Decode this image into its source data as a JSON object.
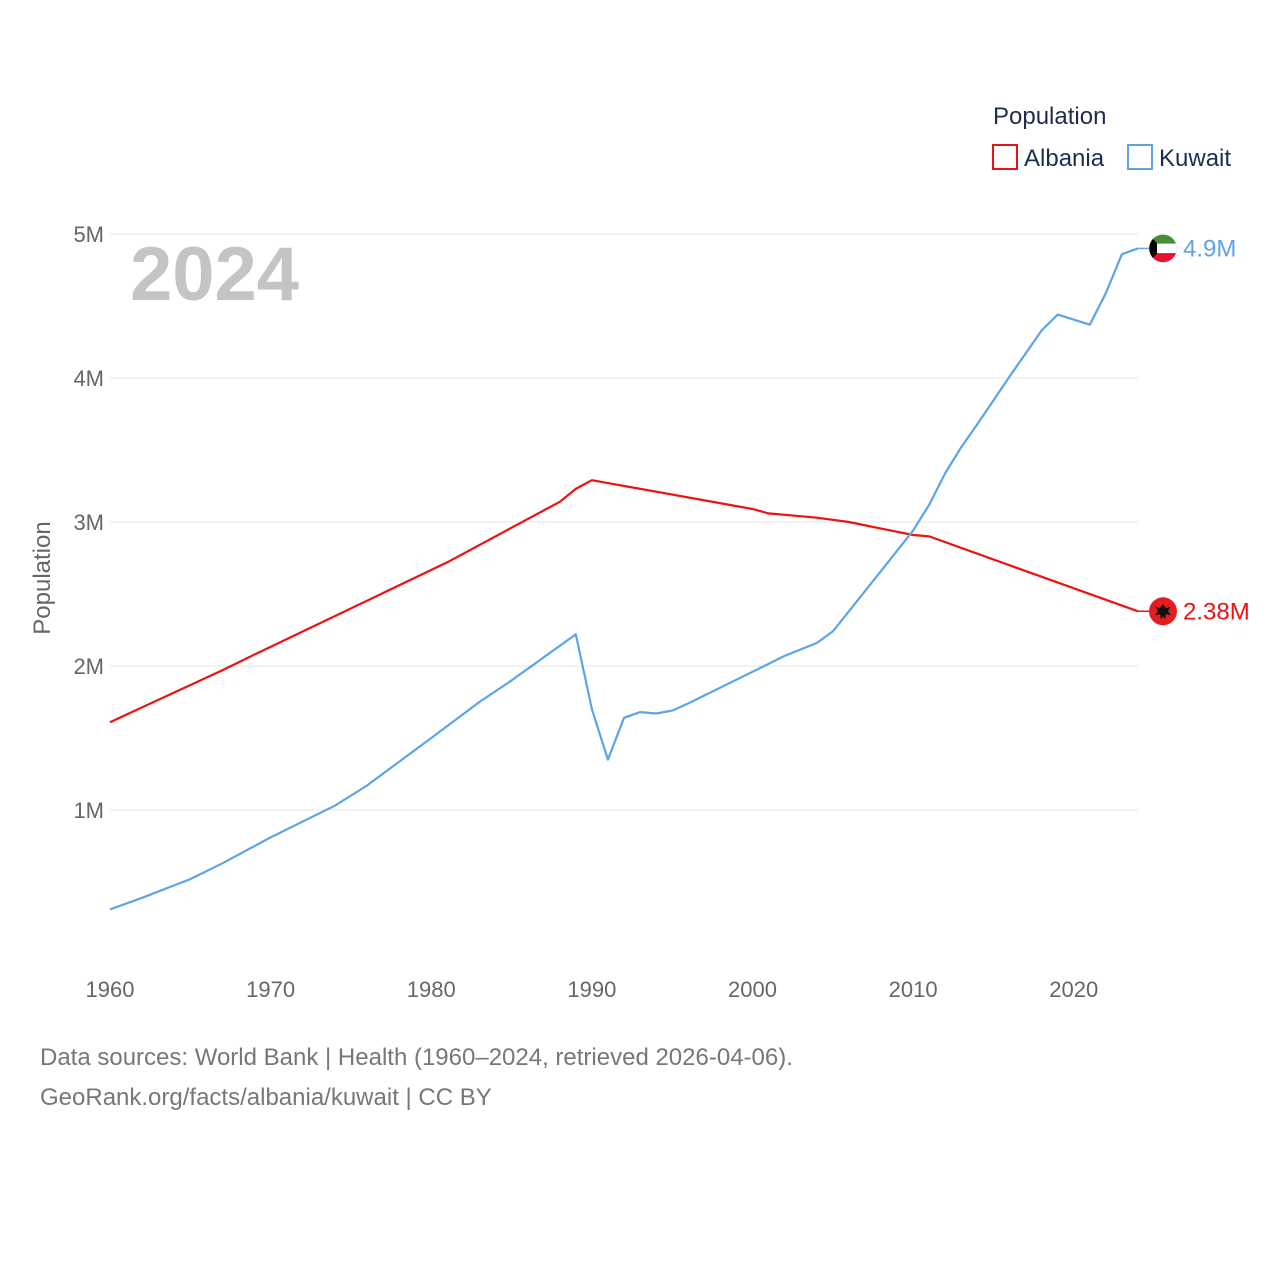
{
  "chart_data": {
    "type": "line",
    "year_label": "2024",
    "ylabel": "Population",
    "ylim": [
      0,
      5000000
    ],
    "xlim": [
      1960,
      2024
    ],
    "x_ticks": [
      1960,
      1970,
      1980,
      1990,
      2000,
      2010,
      2020
    ],
    "x_tick_labels": [
      "1960",
      "1970",
      "1980",
      "1990",
      "2000",
      "2010",
      "2020"
    ],
    "y_ticks": [
      1000000,
      2000000,
      3000000,
      4000000,
      5000000
    ],
    "y_tick_labels": [
      "1M",
      "2M",
      "3M",
      "4M",
      "5M"
    ],
    "legend_title": "Population",
    "series": [
      {
        "name": "Albania",
        "color": "#ee1111",
        "end_label": "2.38M",
        "icon": "albania-flag-icon",
        "points": [
          [
            1960,
            1610000
          ],
          [
            1967,
            1970000
          ],
          [
            1969,
            2080000
          ],
          [
            1981,
            2720000
          ],
          [
            1988,
            3140000
          ],
          [
            1989,
            3230000
          ],
          [
            1990,
            3290000
          ],
          [
            2000,
            3090000
          ],
          [
            2001,
            3060000
          ],
          [
            2004,
            3030000
          ],
          [
            2006,
            3000000
          ],
          [
            2010,
            2910000
          ],
          [
            2011,
            2900000
          ],
          [
            2024,
            2380000
          ]
        ]
      },
      {
        "name": "Kuwait",
        "color": "#5ba4e6",
        "end_label": "4.9M",
        "icon": "kuwait-flag-icon",
        "points": [
          [
            1960,
            310000
          ],
          [
            1962,
            390000
          ],
          [
            1965,
            520000
          ],
          [
            1967,
            630000
          ],
          [
            1970,
            810000
          ],
          [
            1974,
            1030000
          ],
          [
            1976,
            1170000
          ],
          [
            1980,
            1500000
          ],
          [
            1983,
            1750000
          ],
          [
            1985,
            1900000
          ],
          [
            1989,
            2220000
          ],
          [
            1990,
            1700000
          ],
          [
            1991,
            1350000
          ],
          [
            1992,
            1640000
          ],
          [
            1993,
            1680000
          ],
          [
            1994,
            1670000
          ],
          [
            1995,
            1690000
          ],
          [
            1996,
            1740000
          ],
          [
            2000,
            1960000
          ],
          [
            2002,
            2070000
          ],
          [
            2004,
            2160000
          ],
          [
            2005,
            2240000
          ],
          [
            2006,
            2380000
          ],
          [
            2008,
            2660000
          ],
          [
            2010,
            2940000
          ],
          [
            2011,
            3120000
          ],
          [
            2012,
            3340000
          ],
          [
            2013,
            3520000
          ],
          [
            2014,
            3680000
          ],
          [
            2016,
            4010000
          ],
          [
            2017,
            4170000
          ],
          [
            2018,
            4330000
          ],
          [
            2019,
            4440000
          ],
          [
            2021,
            4370000
          ],
          [
            2022,
            4590000
          ],
          [
            2023,
            4860000
          ],
          [
            2024,
            4900000
          ]
        ]
      }
    ]
  },
  "footer": {
    "source": "Data sources: World Bank | Health (1960–2024, retrieved 2026-04-06).",
    "url": "GeoRank.org/facts/albania/kuwait | CC BY"
  }
}
